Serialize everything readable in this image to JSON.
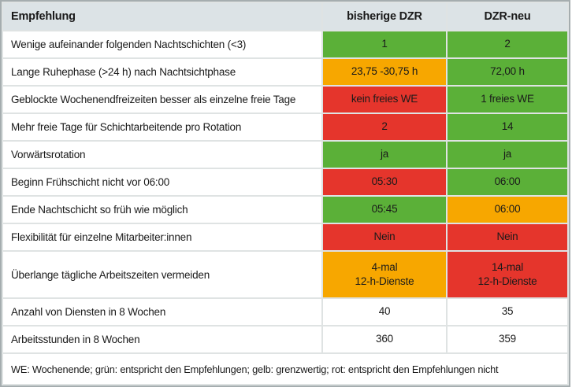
{
  "table": {
    "headers": {
      "recommendation": "Empfehlung",
      "col_previous": "bisherige DZR",
      "col_new": "DZR-neu"
    },
    "rows": [
      {
        "label": "Wenige aufeinander folgenden Nachtschichten (<3)",
        "values": [
          {
            "text": "1",
            "status": "green"
          },
          {
            "text": "2",
            "status": "green"
          }
        ]
      },
      {
        "label": "Lange Ruhephase (>24 h) nach Nachtsichtphase",
        "values": [
          {
            "text": "23,75 -30,75 h",
            "status": "yellow"
          },
          {
            "text": "72,00 h",
            "status": "green"
          }
        ]
      },
      {
        "label": "Geblockte Wochenendfreizeiten besser als einzelne freie Tage",
        "values": [
          {
            "text": "kein freies WE",
            "status": "red"
          },
          {
            "text": "1 freies WE",
            "status": "green"
          }
        ]
      },
      {
        "label": "Mehr freie Tage für Schichtarbeitende pro Rotation",
        "values": [
          {
            "text": "2",
            "status": "red"
          },
          {
            "text": "14",
            "status": "green"
          }
        ]
      },
      {
        "label": "Vorwärtsrotation",
        "values": [
          {
            "text": "ja",
            "status": "green"
          },
          {
            "text": "ja",
            "status": "green"
          }
        ]
      },
      {
        "label": "Beginn Frühschicht nicht vor 06:00",
        "values": [
          {
            "text": "05:30",
            "status": "red"
          },
          {
            "text": "06:00",
            "status": "green"
          }
        ]
      },
      {
        "label": "Ende Nachtschicht so früh wie möglich",
        "values": [
          {
            "text": "05:45",
            "status": "green"
          },
          {
            "text": "06:00",
            "status": "yellow"
          }
        ]
      },
      {
        "label": "Flexibilität für einzelne Mitarbeiter:innen",
        "values": [
          {
            "text": "Nein",
            "status": "red"
          },
          {
            "text": "Nein",
            "status": "red"
          }
        ]
      },
      {
        "label": "Überlange tägliche Arbeitszeiten vermeiden",
        "values": [
          {
            "text": "4-mal\n12-h-Dienste",
            "status": "yellow"
          },
          {
            "text": "14-mal\n12-h-Dienste",
            "status": "red"
          }
        ]
      },
      {
        "label": "Anzahl von Diensten in 8 Wochen",
        "values": [
          {
            "text": "40",
            "status": "white"
          },
          {
            "text": "35",
            "status": "white"
          }
        ]
      },
      {
        "label": "Arbeitsstunden in 8 Wochen",
        "values": [
          {
            "text": "360",
            "status": "white"
          },
          {
            "text": "359",
            "status": "white"
          }
        ]
      }
    ],
    "footer": "WE: Wochenende; grün: entspricht den Empfehlungen; gelb: grenzwertig; rot: entspricht den Empfehlungen nicht"
  },
  "colors": {
    "green": "#5bb038",
    "yellow": "#f7a700",
    "red": "#e5352c",
    "white": "#ffffff",
    "header_bg": "#dce3e6"
  }
}
